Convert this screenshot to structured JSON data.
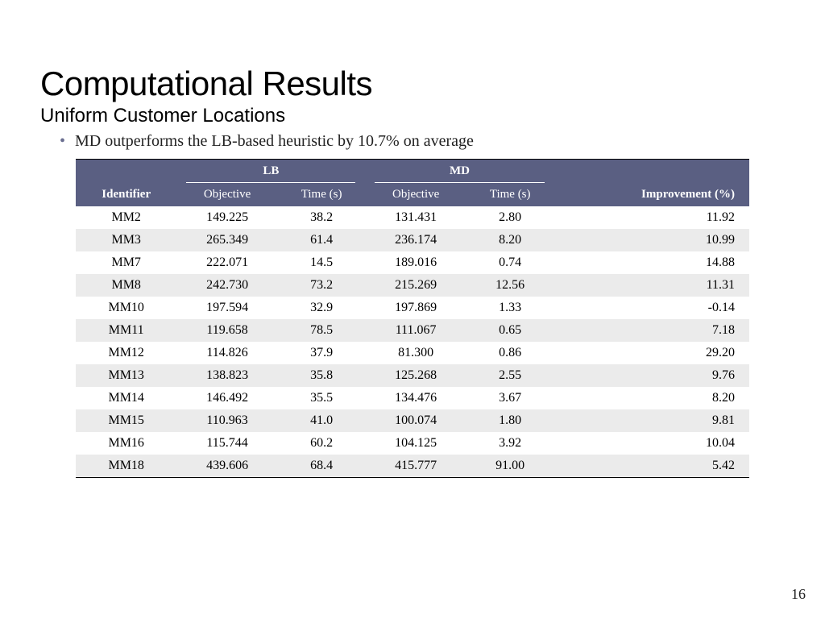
{
  "title": "Computational Results",
  "subtitle": "Uniform Customer Locations",
  "bullet": "MD outperforms the LB-based heuristic by 10.7% on average",
  "page_number": "16",
  "colors": {
    "header_bg": "#5a5f82",
    "header_fg": "#ffffff",
    "row_alt": "#ebebeb",
    "row_base": "#ffffff",
    "bullet_dot": "#6b6f91",
    "rule": "#000000"
  },
  "typography": {
    "title_font": "Verdana",
    "title_size_pt": 32,
    "subtitle_size_pt": 18,
    "body_font": "Georgia",
    "body_size_pt": 15,
    "table_size_pt": 12
  },
  "table": {
    "type": "table",
    "group_headers": {
      "lb": "LB",
      "md": "MD"
    },
    "columns": {
      "identifier": "Identifier",
      "lb_objective": "Objective",
      "lb_time": "Time (s)",
      "md_objective": "Objective",
      "md_time": "Time (s)",
      "improvement": "Improvement (%)"
    },
    "rows": [
      {
        "id": "MM2",
        "lb_obj": "149.225",
        "lb_t": "38.2",
        "md_obj": "131.431",
        "md_t": "2.80",
        "imp": "11.92"
      },
      {
        "id": "MM3",
        "lb_obj": "265.349",
        "lb_t": "61.4",
        "md_obj": "236.174",
        "md_t": "8.20",
        "imp": "10.99"
      },
      {
        "id": "MM7",
        "lb_obj": "222.071",
        "lb_t": "14.5",
        "md_obj": "189.016",
        "md_t": "0.74",
        "imp": "14.88"
      },
      {
        "id": "MM8",
        "lb_obj": "242.730",
        "lb_t": "73.2",
        "md_obj": "215.269",
        "md_t": "12.56",
        "imp": "11.31"
      },
      {
        "id": "MM10",
        "lb_obj": "197.594",
        "lb_t": "32.9",
        "md_obj": "197.869",
        "md_t": "1.33",
        "imp": "-0.14"
      },
      {
        "id": "MM11",
        "lb_obj": "119.658",
        "lb_t": "78.5",
        "md_obj": "111.067",
        "md_t": "0.65",
        "imp": "7.18"
      },
      {
        "id": "MM12",
        "lb_obj": "114.826",
        "lb_t": "37.9",
        "md_obj": "81.300",
        "md_t": "0.86",
        "imp": "29.20"
      },
      {
        "id": "MM13",
        "lb_obj": "138.823",
        "lb_t": "35.8",
        "md_obj": "125.268",
        "md_t": "2.55",
        "imp": "9.76"
      },
      {
        "id": "MM14",
        "lb_obj": "146.492",
        "lb_t": "35.5",
        "md_obj": "134.476",
        "md_t": "3.67",
        "imp": "8.20"
      },
      {
        "id": "MM15",
        "lb_obj": "110.963",
        "lb_t": "41.0",
        "md_obj": "100.074",
        "md_t": "1.80",
        "imp": "9.81"
      },
      {
        "id": "MM16",
        "lb_obj": "115.744",
        "lb_t": "60.2",
        "md_obj": "104.125",
        "md_t": "3.92",
        "imp": "10.04"
      },
      {
        "id": "MM18",
        "lb_obj": "439.606",
        "lb_t": "68.4",
        "md_obj": "415.777",
        "md_t": "91.00",
        "imp": "5.42"
      }
    ]
  }
}
